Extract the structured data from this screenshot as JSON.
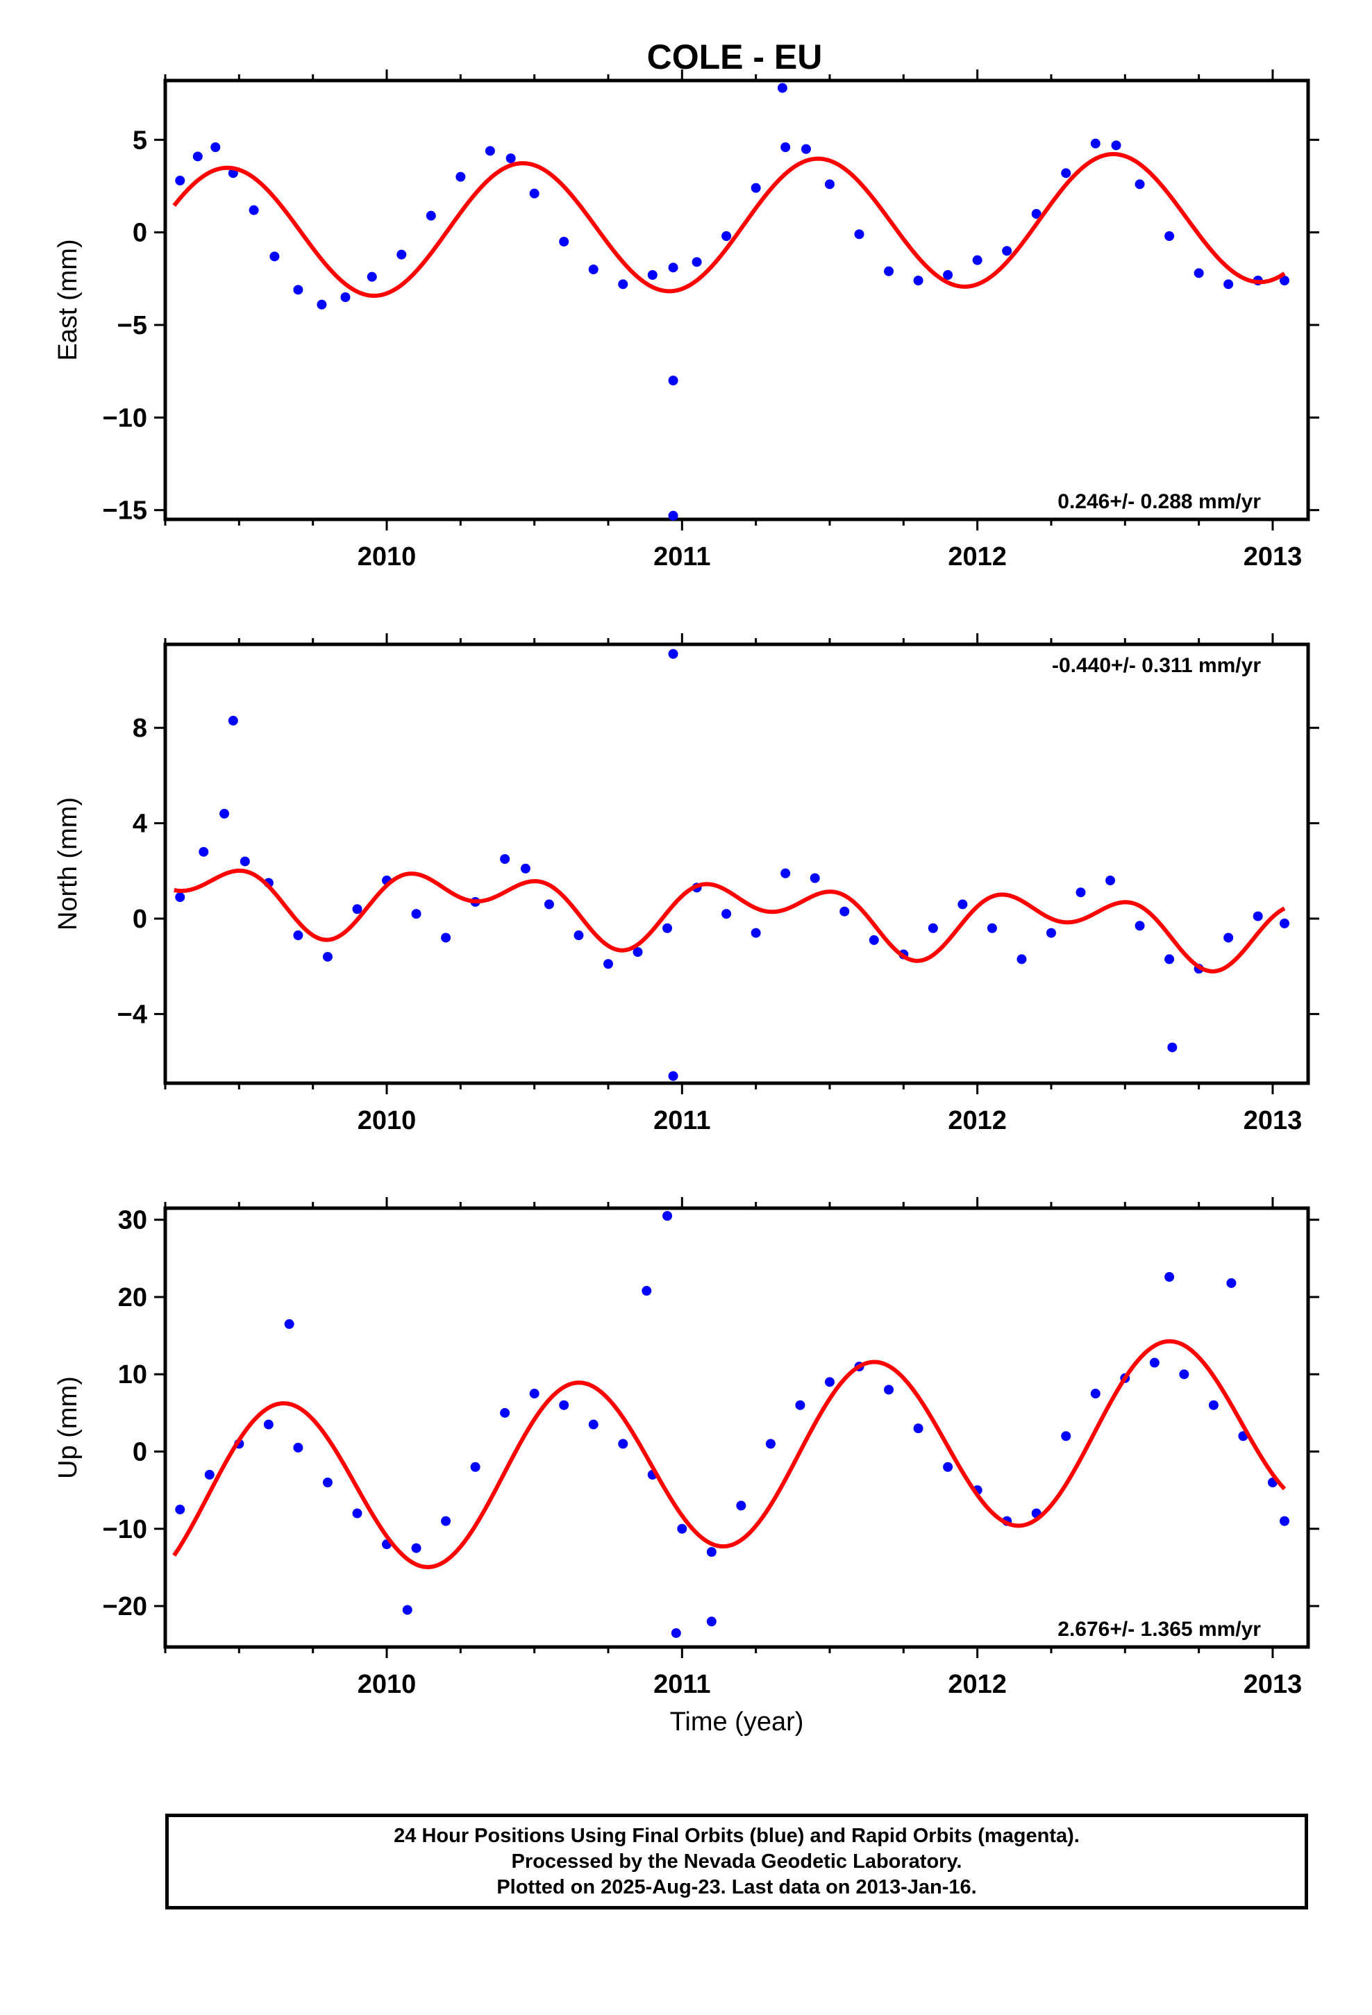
{
  "figure": {
    "title": "COLE - EU",
    "xlabel": "Time (year)",
    "caption": [
      "24 Hour Positions Using Final Orbits (blue) and Rapid Orbits (magenta).",
      "Processed by the Nevada Geodetic Laboratory.",
      "Plotted on 2025-Aug-23. Last data on 2013-Jan-16."
    ]
  },
  "colors": {
    "points": "#0000ff",
    "fit": "#ff0000",
    "frame": "#000000"
  },
  "chart_data": [
    {
      "type": "scatter",
      "ylabel": "East (mm)",
      "rate_text": "0.246+/- 0.288 mm/yr",
      "rate_position": "bottom-right",
      "xlim": [
        2009.25,
        2013.12
      ],
      "ylim": [
        -15.5,
        8.2
      ],
      "xticks": [
        2010,
        2011,
        2012,
        2013
      ],
      "xtick_labels": [
        "2010",
        "2011",
        "2012",
        "2013"
      ],
      "yticks": [
        5,
        0,
        -5,
        -10,
        -15
      ],
      "ytick_labels": [
        "5",
        "0",
        "−5",
        "−10",
        "−15"
      ],
      "grid": false,
      "series": [
        {
          "kind": "points",
          "x": [
            2009.3,
            2009.36,
            2009.42,
            2009.48,
            2009.55,
            2009.62,
            2009.7,
            2009.78,
            2009.86,
            2009.95,
            2010.05,
            2010.15,
            2010.25,
            2010.35,
            2010.42,
            2010.5,
            2010.6,
            2010.7,
            2010.8,
            2010.9,
            2010.97,
            2011.05,
            2011.15,
            2011.25,
            2011.35,
            2011.42,
            2011.5,
            2011.6,
            2011.7,
            2011.8,
            2011.9,
            2012.0,
            2012.1,
            2012.2,
            2012.3,
            2012.4,
            2012.47,
            2012.55,
            2012.65,
            2012.75,
            2012.85,
            2012.95,
            2013.04,
            2010.97,
            2010.97,
            2011.34
          ],
          "y": [
            2.8,
            4.1,
            4.6,
            3.2,
            1.2,
            -1.3,
            -3.1,
            -3.9,
            -3.5,
            -2.4,
            -1.2,
            0.9,
            3.0,
            4.4,
            4.0,
            2.1,
            -0.5,
            -2.0,
            -2.8,
            -2.3,
            -1.9,
            -1.6,
            -0.2,
            2.4,
            4.6,
            4.5,
            2.6,
            -0.1,
            -2.1,
            -2.6,
            -2.3,
            -1.5,
            -1.0,
            1.0,
            3.2,
            4.8,
            4.7,
            2.6,
            -0.2,
            -2.2,
            -2.8,
            -2.6,
            -2.6,
            -8.0,
            -15.3,
            7.8
          ]
        },
        {
          "kind": "fit",
          "function": "trend_plus_seasonal",
          "intercept": 0.35,
          "trend": 0.246,
          "ref_year": 2011.0,
          "annual_cos": -3.4,
          "annual_sin": 0.9,
          "semiannual_cos": 0.0,
          "semiannual_sin": 0.0,
          "x_range": [
            2009.28,
            2013.04
          ]
        }
      ]
    },
    {
      "type": "scatter",
      "ylabel": "North (mm)",
      "rate_text": "-0.440+/- 0.311 mm/yr",
      "rate_position": "top-right",
      "xlim": [
        2009.25,
        2013.12
      ],
      "ylim": [
        -6.9,
        11.5
      ],
      "xticks": [
        2010,
        2011,
        2012,
        2013
      ],
      "xtick_labels": [
        "2010",
        "2011",
        "2012",
        "2013"
      ],
      "yticks": [
        8,
        4,
        0,
        -4
      ],
      "ytick_labels": [
        "8",
        "4",
        "0",
        "−4"
      ],
      "grid": false,
      "series": [
        {
          "kind": "points",
          "x": [
            2009.3,
            2009.38,
            2009.45,
            2009.52,
            2009.6,
            2009.7,
            2009.8,
            2009.9,
            2010.0,
            2010.1,
            2010.2,
            2010.3,
            2010.4,
            2010.47,
            2010.55,
            2010.65,
            2010.75,
            2010.85,
            2010.95,
            2011.05,
            2011.15,
            2011.25,
            2011.35,
            2011.45,
            2011.55,
            2011.65,
            2011.75,
            2011.85,
            2011.95,
            2012.05,
            2012.15,
            2012.25,
            2012.35,
            2012.45,
            2012.55,
            2012.65,
            2012.75,
            2012.85,
            2012.95,
            2013.04,
            2009.48,
            2010.97,
            2010.97,
            2012.66
          ],
          "y": [
            0.9,
            2.8,
            4.4,
            2.4,
            1.5,
            -0.7,
            -1.6,
            0.4,
            1.6,
            0.2,
            -0.8,
            0.7,
            2.5,
            2.1,
            0.6,
            -0.7,
            -1.9,
            -1.4,
            -0.4,
            1.3,
            0.2,
            -0.6,
            1.9,
            1.7,
            0.3,
            -0.9,
            -1.5,
            -0.4,
            0.6,
            -0.4,
            -1.7,
            -0.6,
            1.1,
            1.6,
            -0.3,
            -1.7,
            -2.1,
            -0.8,
            0.1,
            -0.2,
            8.3,
            11.1,
            -6.6,
            -5.4
          ]
        },
        {
          "kind": "fit",
          "function": "trend_plus_seasonal",
          "intercept": 0.4,
          "trend": -0.44,
          "ref_year": 2011.0,
          "annual_cos": -0.2,
          "annual_sin": 0.9,
          "semiannual_cos": 0.75,
          "semiannual_sin": 0.5,
          "x_range": [
            2009.28,
            2013.04
          ]
        }
      ]
    },
    {
      "type": "scatter",
      "ylabel": "Up (mm)",
      "rate_text": "2.676+/- 1.365 mm/yr",
      "rate_position": "bottom-right",
      "xlim": [
        2009.25,
        2013.12
      ],
      "ylim": [
        -25.3,
        31.5
      ],
      "xticks": [
        2010,
        2011,
        2012,
        2013
      ],
      "xtick_labels": [
        "2010",
        "2011",
        "2012",
        "2013"
      ],
      "yticks": [
        30,
        20,
        10,
        0,
        -10,
        -20
      ],
      "ytick_labels": [
        "30",
        "20",
        "10",
        "0",
        "−10",
        "−20"
      ],
      "grid": false,
      "series": [
        {
          "kind": "points",
          "x": [
            2009.3,
            2009.4,
            2009.5,
            2009.6,
            2009.7,
            2009.8,
            2009.9,
            2010.0,
            2010.1,
            2010.2,
            2010.3,
            2010.4,
            2010.5,
            2010.6,
            2010.7,
            2010.8,
            2010.9,
            2011.0,
            2011.1,
            2011.2,
            2011.3,
            2011.4,
            2011.5,
            2011.6,
            2011.7,
            2011.8,
            2011.9,
            2012.0,
            2012.1,
            2012.2,
            2012.3,
            2012.4,
            2012.5,
            2012.6,
            2012.7,
            2012.8,
            2012.9,
            2013.0,
            2013.04,
            2010.95,
            2010.88,
            2012.65,
            2012.86,
            2010.98,
            2011.1,
            2009.67,
            2010.07
          ],
          "y": [
            -7.5,
            -3.0,
            1.0,
            3.5,
            0.5,
            -4.0,
            -8.0,
            -12.0,
            -12.5,
            -9.0,
            -2.0,
            5.0,
            7.5,
            6.0,
            3.5,
            1.0,
            -3.0,
            -10.0,
            -13.0,
            -7.0,
            1.0,
            6.0,
            9.0,
            11.0,
            8.0,
            3.0,
            -2.0,
            -5.0,
            -9.0,
            -8.0,
            2.0,
            7.5,
            9.5,
            11.5,
            10.0,
            6.0,
            2.0,
            -4.0,
            -9.0,
            30.5,
            20.8,
            22.6,
            21.8,
            -23.5,
            -22.0,
            16.5,
            -20.5
          ]
        },
        {
          "kind": "fit",
          "function": "trend_plus_seasonal",
          "intercept": -1.4,
          "trend": 2.676,
          "ref_year": 2011.0,
          "annual_cos": -6.9,
          "annual_sin": -8.9,
          "semiannual_cos": 0.0,
          "semiannual_sin": 0.0,
          "x_range": [
            2009.28,
            2013.04
          ]
        }
      ]
    }
  ]
}
